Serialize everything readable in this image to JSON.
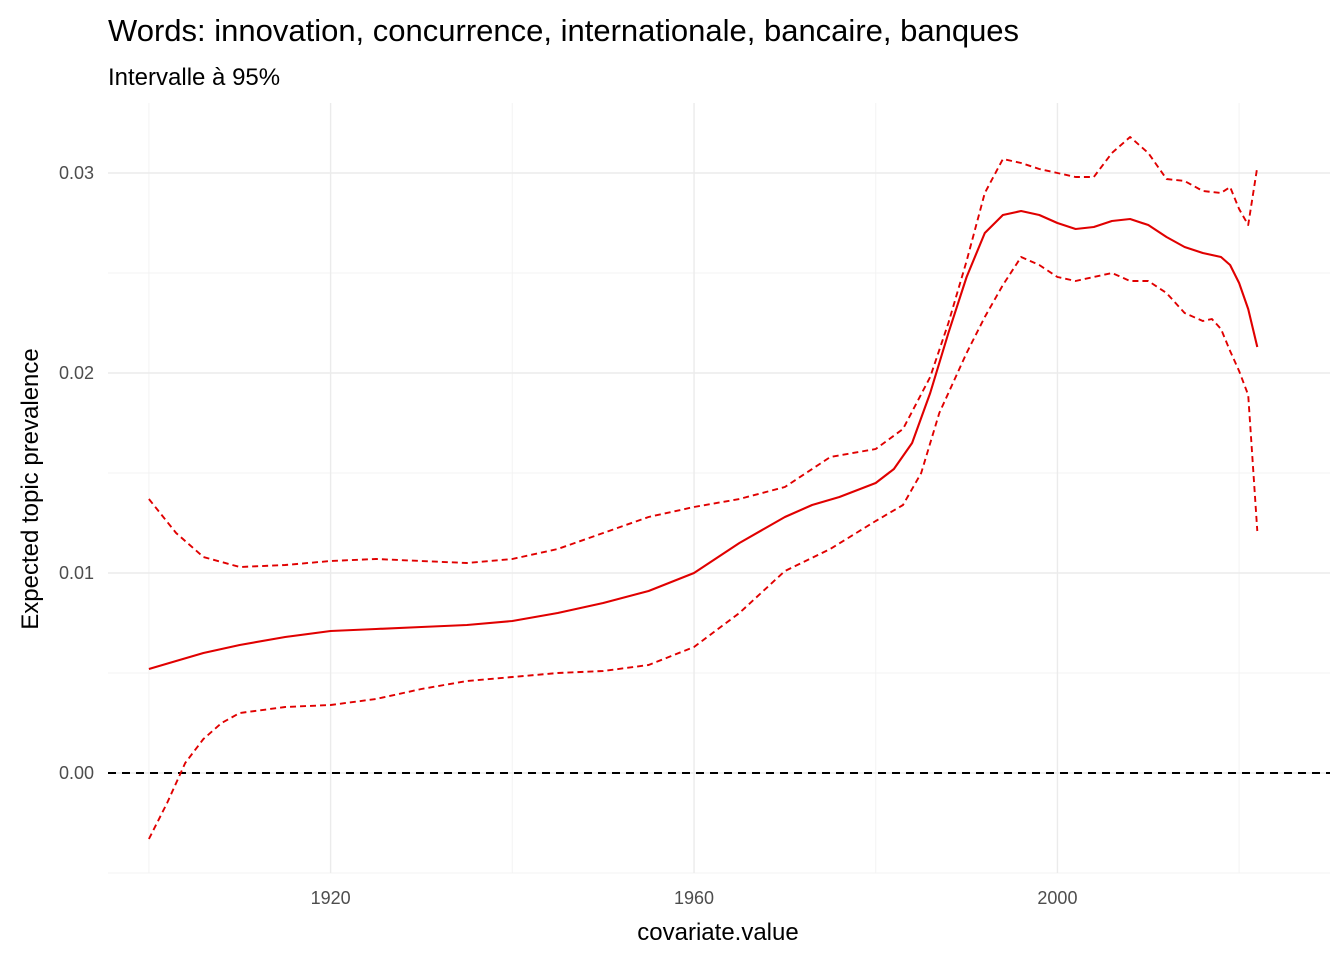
{
  "chart_data": {
    "type": "line",
    "title": "Words: innovation, concurrence, internationale, bancaire, banques",
    "subtitle": "Intervalle à 95%",
    "xlabel": "covariate.value",
    "ylabel": "Expected topic prevalence",
    "xlim": [
      1895.5,
      2030
    ],
    "ylim": [
      -0.005,
      0.0335
    ],
    "x_ticks": [
      1920,
      1960,
      2000
    ],
    "x_tick_labels": [
      "1920",
      "1960",
      "2000"
    ],
    "y_ticks": [
      0,
      0.01,
      0.02,
      0.03
    ],
    "y_tick_labels": [
      "0.00",
      "0.01",
      "0.02",
      "0.03"
    ],
    "grid": true,
    "legend": "none",
    "reference_line": {
      "y": 0,
      "style": "dashed",
      "color": "#000000"
    },
    "colors": {
      "series": "#e00000"
    },
    "series": [
      {
        "style": "solid",
        "x": [
          1900,
          1903,
          1906,
          1910,
          1915,
          1920,
          1925,
          1930,
          1935,
          1940,
          1945,
          1950,
          1955,
          1960,
          1965,
          1970,
          1973,
          1976,
          1980,
          1982,
          1984,
          1986,
          1988,
          1990,
          1992,
          1994,
          1996,
          1998,
          2000,
          2002,
          2004,
          2006,
          2008,
          2010,
          2012,
          2014,
          2016,
          2018,
          2019,
          2020,
          2021,
          2022
        ],
        "y": [
          0.0052,
          0.0056,
          0.006,
          0.0064,
          0.0068,
          0.0071,
          0.0072,
          0.0073,
          0.0074,
          0.0076,
          0.008,
          0.0085,
          0.0091,
          0.01,
          0.0115,
          0.0128,
          0.0134,
          0.0138,
          0.0145,
          0.0152,
          0.0165,
          0.019,
          0.022,
          0.0248,
          0.027,
          0.0279,
          0.0281,
          0.0279,
          0.0275,
          0.0272,
          0.0273,
          0.0276,
          0.0277,
          0.0274,
          0.0268,
          0.0263,
          0.026,
          0.0258,
          0.0254,
          0.0245,
          0.0232,
          0.0213
        ]
      },
      {
        "style": "dashed",
        "x": [
          1900,
          1903,
          1906,
          1910,
          1915,
          1920,
          1925,
          1930,
          1935,
          1940,
          1945,
          1950,
          1955,
          1960,
          1965,
          1970,
          1975,
          1980,
          1983,
          1986,
          1988,
          1990,
          1992,
          1994,
          1996,
          1998,
          2000,
          2002,
          2004,
          2006,
          2008,
          2010,
          2012,
          2014,
          2016,
          2018,
          2019,
          2020,
          2021,
          2022
        ],
        "y": [
          0.0137,
          0.012,
          0.0108,
          0.0103,
          0.0104,
          0.0106,
          0.0107,
          0.0106,
          0.0105,
          0.0107,
          0.0112,
          0.012,
          0.0128,
          0.0133,
          0.0137,
          0.0143,
          0.0158,
          0.0162,
          0.0172,
          0.0198,
          0.0225,
          0.0256,
          0.029,
          0.0307,
          0.0305,
          0.0302,
          0.03,
          0.0298,
          0.0298,
          0.031,
          0.0318,
          0.031,
          0.0297,
          0.0296,
          0.0291,
          0.029,
          0.0293,
          0.0282,
          0.0274,
          0.0303
        ]
      },
      {
        "style": "dashed",
        "x": [
          1900,
          1902,
          1904,
          1906,
          1908,
          1910,
          1915,
          1920,
          1925,
          1930,
          1935,
          1940,
          1945,
          1950,
          1955,
          1960,
          1965,
          1970,
          1975,
          1980,
          1983,
          1985,
          1987,
          1990,
          1992,
          1994,
          1996,
          1998,
          2000,
          2002,
          2004,
          2006,
          2008,
          2010,
          2012,
          2014,
          2016,
          2017,
          2018,
          2019,
          2020,
          2021,
          2022
        ],
        "y": [
          -0.0033,
          -0.0015,
          0.0005,
          0.0017,
          0.0025,
          0.003,
          0.0033,
          0.0034,
          0.0037,
          0.0042,
          0.0046,
          0.0048,
          0.005,
          0.0051,
          0.0054,
          0.0063,
          0.008,
          0.0101,
          0.0112,
          0.0126,
          0.0134,
          0.015,
          0.018,
          0.021,
          0.0228,
          0.0244,
          0.0258,
          0.0254,
          0.0248,
          0.0246,
          0.0248,
          0.025,
          0.0246,
          0.0246,
          0.024,
          0.023,
          0.0226,
          0.0227,
          0.0222,
          0.0211,
          0.0201,
          0.0189,
          0.0121
        ]
      }
    ]
  }
}
